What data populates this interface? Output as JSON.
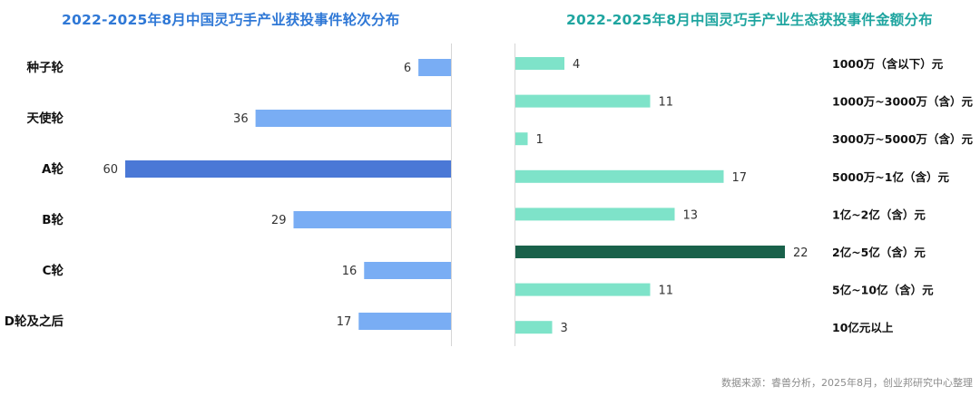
{
  "colors": {
    "left_title": "#2f78d6",
    "right_title": "#1fa5a0",
    "left_bar": "#79adf4",
    "left_highlight": "#4a78d6",
    "right_bar": "#7ee3c9",
    "right_highlight": "#19614a"
  },
  "chart_data": [
    {
      "type": "bar",
      "orientation": "horizontal",
      "title": "2022-2025年8月中国灵巧手产业获投事件轮次分布",
      "categories": [
        "种子轮",
        "天使轮",
        "A轮",
        "B轮",
        "C轮",
        "D轮及之后"
      ],
      "values": [
        6,
        36,
        60,
        29,
        16,
        17
      ],
      "highlight_index": 2,
      "xlim": [
        0,
        60
      ],
      "label_side": "left"
    },
    {
      "type": "bar",
      "orientation": "horizontal",
      "title": "2022-2025年8月中国灵巧手产业生态获投事件金额分布",
      "categories": [
        "1000万（含以下）元",
        "1000万~3000万（含）元",
        "3000万~5000万（含）元",
        "5000万~1亿（含）元",
        "1亿~2亿（含）元",
        "2亿~5亿（含）元",
        "5亿~10亿（含）元",
        "10亿元以上"
      ],
      "values": [
        4,
        11,
        1,
        17,
        13,
        22,
        11,
        3
      ],
      "highlight_index": 5,
      "xlim": [
        0,
        22
      ],
      "label_side": "right"
    }
  ],
  "source": "数据来源：睿兽分析，2025年8月，创业邦研究中心整理"
}
